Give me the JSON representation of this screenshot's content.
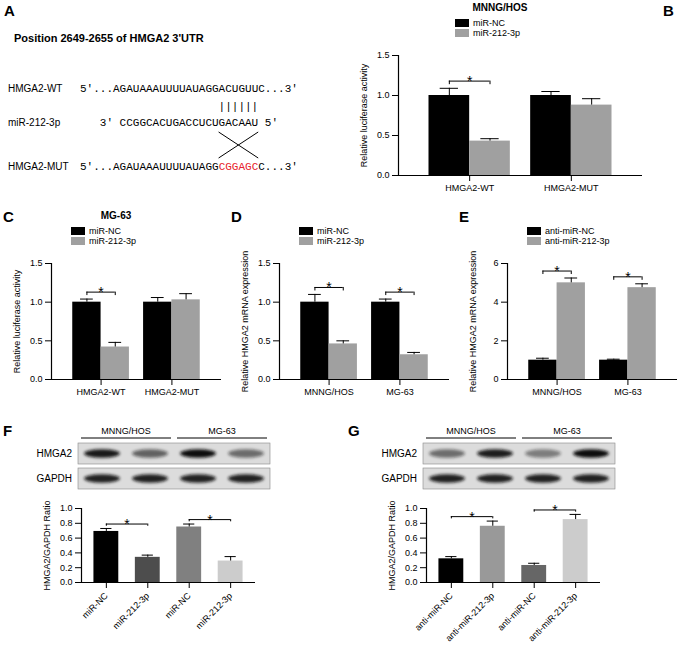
{
  "sequence_diagram": {
    "panel": "A",
    "title": "Position 2649-2655 of HMGA2 3'UTR",
    "rows": [
      {
        "label": "HMGA2-WT",
        "segments": [
          {
            "text": "5'...AGAUAAAUUUUAUAGGACUGUUC...3'"
          }
        ]
      },
      {
        "label": "miR-212-3p",
        "segments": [
          {
            "text": "3'  CCGGCACUGACCUCUGACAAU  5'"
          }
        ]
      },
      {
        "label": "HMGA2-MUT",
        "segments": [
          {
            "text": "5'...AGAUAAAUUUUAUAGG"
          },
          {
            "text": "CGGAGC",
            "color": "#e8212a"
          },
          {
            "text": "C...3'"
          }
        ]
      }
    ],
    "pairing": "||||||"
  },
  "chart_data": [
    {
      "panel": "B",
      "type": "bar",
      "title": "MNNG/HOS",
      "y_label": "Relative luciferase activity",
      "categories": [
        "HMGA2-WT",
        "HMGA2-MUT"
      ],
      "series": [
        {
          "name": "miR-NC",
          "color": "#000000",
          "values": [
            1.0,
            1.0
          ],
          "errors": [
            0.09,
            0.05
          ]
        },
        {
          "name": "miR-212-3p",
          "color": "#a0a0a0",
          "values": [
            0.43,
            0.88
          ],
          "errors": [
            0.03,
            0.08
          ]
        }
      ],
      "ylim": [
        0,
        1.5
      ],
      "yticks": [
        {
          "value": 0,
          "label": "0.0"
        },
        0.5,
        {
          "value": 1,
          "label": "1.0"
        },
        1.5
      ],
      "legend": "top",
      "significance": [
        {
          "category": "HMGA2-WT",
          "label": "*"
        }
      ]
    },
    {
      "panel": "C",
      "type": "bar",
      "title": "MG-63",
      "y_label": "Relative luciferase activity",
      "categories": [
        "HMGA2-WT",
        "HMGA2-MUT"
      ],
      "series": [
        {
          "name": "miR-NC",
          "color": "#000000",
          "values": [
            1.0,
            1.0
          ],
          "errors": [
            0.04,
            0.06
          ]
        },
        {
          "name": "miR-212-3p",
          "color": "#a0a0a0",
          "values": [
            0.42,
            1.03
          ],
          "errors": [
            0.06,
            0.08
          ]
        }
      ],
      "ylim": [
        0,
        1.5
      ],
      "yticks": [
        {
          "value": 0,
          "label": "0.0"
        },
        0.5,
        {
          "value": 1,
          "label": "1.0"
        },
        1.5
      ],
      "legend": "top",
      "significance": [
        {
          "category": "HMGA2-WT",
          "label": "*"
        }
      ]
    },
    {
      "panel": "D",
      "type": "bar",
      "y_label": "Relative HMGA2 mRNA expression",
      "categories": [
        "MNNG/HOS",
        "MG-63"
      ],
      "series": [
        {
          "name": "miR-NC",
          "color": "#000000",
          "values": [
            1.0,
            1.0
          ],
          "errors": [
            0.1,
            0.04
          ]
        },
        {
          "name": "miR-212-3p",
          "color": "#a0a0a0",
          "values": [
            0.46,
            0.32
          ],
          "errors": [
            0.04,
            0.03
          ]
        }
      ],
      "ylim": [
        0,
        1.5
      ],
      "yticks": [
        {
          "value": 0,
          "label": "0.0"
        },
        0.5,
        {
          "value": 1,
          "label": "1.0"
        },
        1.5
      ],
      "legend": "top",
      "significance": [
        {
          "category": "MNNG/HOS",
          "label": "*"
        },
        {
          "category": "MG-63",
          "label": "*"
        }
      ]
    },
    {
      "panel": "E",
      "type": "bar",
      "y_label": "Relative HMGA2 mRNA expression",
      "categories": [
        "MNNG/HOS",
        "MG-63"
      ],
      "series": [
        {
          "name": "anti-miR-NC",
          "color": "#000000",
          "values": [
            1.0,
            1.0
          ],
          "errors": [
            0.1,
            0.05
          ]
        },
        {
          "name": "anti-miR-212-3p",
          "color": "#a0a0a0",
          "values": [
            5.0,
            4.75
          ],
          "errors": [
            0.25,
            0.2
          ]
        }
      ],
      "ylim": [
        0,
        6
      ],
      "yticks": [
        0,
        2,
        4,
        6
      ],
      "legend": "top",
      "significance": [
        {
          "category": "MNNG/HOS",
          "label": "*"
        },
        {
          "category": "MG-63",
          "label": "*"
        }
      ]
    },
    {
      "panel": "F",
      "type": "bar",
      "y_label": "HMGA2/GAPDH Ratio",
      "categories": [
        "miR-NC",
        "miR-212-3p",
        "miR-NC",
        "miR-212-3p"
      ],
      "values": [
        0.69,
        0.34,
        0.75,
        0.29
      ],
      "errors": [
        0.04,
        0.03,
        0.04,
        0.06
      ],
      "colors": [
        "#000000",
        "#4d4d4d",
        "#808080",
        "#cccccc"
      ],
      "ylim": [
        0,
        1
      ],
      "yticks": [
        {
          "value": 0,
          "label": "0.0"
        },
        0.2,
        0.4,
        0.6,
        0.8,
        {
          "value": 1,
          "label": "1.0"
        }
      ],
      "significance": [
        {
          "bars": [
            0,
            1
          ],
          "label": "*"
        },
        {
          "bars": [
            2,
            3
          ],
          "label": "*"
        }
      ],
      "blot": {
        "groups": [
          "MNNG/HOS",
          "MG-63"
        ],
        "rows": [
          "HMGA2",
          "GAPDH"
        ]
      }
    },
    {
      "panel": "G",
      "type": "bar",
      "y_label": "HMGA2/GAPDH Ratio",
      "categories": [
        "anti-miR-NC",
        "anti-miR-212-3p",
        "anti-miR-NC",
        "anti-miR-212-3p"
      ],
      "values": [
        0.32,
        0.76,
        0.23,
        0.85
      ],
      "errors": [
        0.03,
        0.07,
        0.03,
        0.07
      ],
      "colors": [
        "#000000",
        "#999999",
        "#666666",
        "#cccccc"
      ],
      "ylim": [
        0,
        1
      ],
      "yticks": [
        {
          "value": 0,
          "label": "0.0"
        },
        0.2,
        0.4,
        0.6,
        0.8,
        {
          "value": 1,
          "label": "1.0"
        }
      ],
      "significance": [
        {
          "bars": [
            0,
            1
          ],
          "label": "*"
        },
        {
          "bars": [
            2,
            3
          ],
          "label": "*"
        }
      ],
      "blot": {
        "groups": [
          "MNNG/HOS",
          "MG-63"
        ],
        "rows": [
          "HMGA2",
          "GAPDH"
        ]
      }
    }
  ]
}
